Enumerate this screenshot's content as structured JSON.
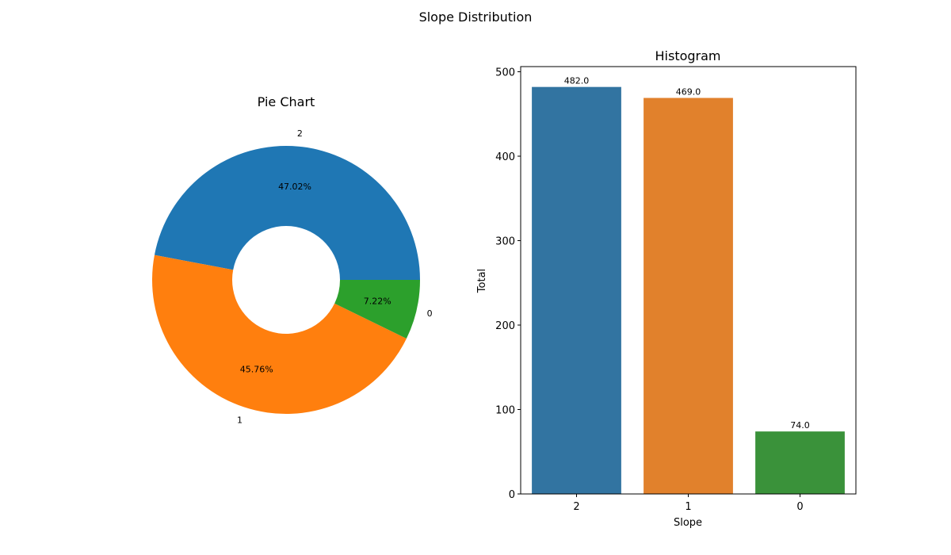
{
  "figure": {
    "title": "Slope Distribution"
  },
  "chart_data": [
    {
      "type": "pie",
      "title": "Pie Chart",
      "donut": true,
      "labels": [
        "2",
        "1",
        "0"
      ],
      "values": [
        482,
        469,
        74
      ],
      "percent_labels": [
        "47.02%",
        "45.76%",
        "7.22%"
      ],
      "colors": [
        "#1f77b4",
        "#ff7f0e",
        "#2ca02c"
      ]
    },
    {
      "type": "bar",
      "title": "Histogram",
      "categories": [
        "2",
        "1",
        "0"
      ],
      "values": [
        482,
        469,
        74
      ],
      "value_labels": [
        "482.0",
        "469.0",
        "74.0"
      ],
      "colors": [
        "#3274a1",
        "#e1812c",
        "#3a923a"
      ],
      "xlabel": "Slope",
      "ylabel": "Total",
      "ylim": [
        0,
        506.1
      ],
      "yticks": [
        0,
        100,
        200,
        300,
        400,
        500
      ],
      "grid": false
    }
  ]
}
